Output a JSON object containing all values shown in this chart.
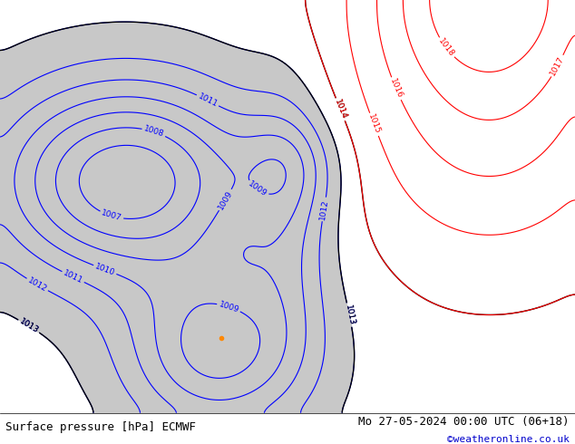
{
  "title_left": "Surface pressure [hPa] ECMWF",
  "title_right": "Mo 27-05-2024 00:00 UTC (06+18)",
  "credit": "©weatheronline.co.uk",
  "bg_color": "#a8d878",
  "low_fill_color": "#c8c8c8",
  "fig_width": 6.34,
  "fig_height": 4.9,
  "dpi": 100,
  "title_fontsize": 9,
  "credit_fontsize": 8,
  "credit_color": "#0000cc",
  "title_bg": "#ffffff",
  "title_text_color": "#000000",
  "contour_blue_color": "#0000ff",
  "contour_black_color": "#000000",
  "contour_red_color": "#ff0000",
  "label_fontsize": 6.5
}
